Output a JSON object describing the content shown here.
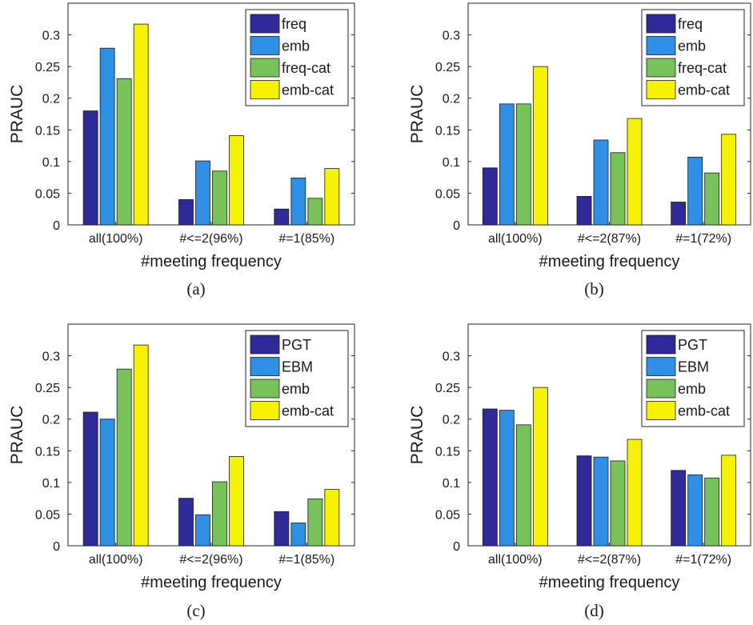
{
  "colors": {
    "series": [
      "#2e2a9a",
      "#2e8fe6",
      "#78c25a",
      "#f7f300"
    ],
    "axis": "#262626",
    "bar_edge": "#1a1a1a"
  },
  "chart_data": [
    {
      "type": "bar",
      "caption": "(a)",
      "xlabel": "#meeting frequency",
      "ylabel": "PRAUC",
      "ylim": [
        0,
        0.35
      ],
      "yticks": [
        "0",
        "0.05",
        "0.1",
        "0.15",
        "0.2",
        "0.25",
        "0.3"
      ],
      "categories": [
        "all(100%)",
        "#<=2(96%)",
        "#=1(85%)"
      ],
      "legend_position": "top-right",
      "series": [
        {
          "name": "freq",
          "values": [
            0.18,
            0.04,
            0.025
          ]
        },
        {
          "name": "emb",
          "values": [
            0.279,
            0.101,
            0.074
          ]
        },
        {
          "name": "freq-cat",
          "values": [
            0.231,
            0.085,
            0.042
          ]
        },
        {
          "name": "emb-cat",
          "values": [
            0.317,
            0.141,
            0.089
          ]
        }
      ]
    },
    {
      "type": "bar",
      "caption": "(b)",
      "xlabel": "#meeting frequency",
      "ylabel": "PRAUC",
      "ylim": [
        0,
        0.35
      ],
      "yticks": [
        "0",
        "0.05",
        "0.1",
        "0.15",
        "0.2",
        "0.25",
        "0.3"
      ],
      "categories": [
        "all(100%)",
        "#<=2(87%)",
        "#=1(72%)"
      ],
      "legend_position": "top-right",
      "series": [
        {
          "name": "freq",
          "values": [
            0.09,
            0.045,
            0.036
          ]
        },
        {
          "name": "emb",
          "values": [
            0.191,
            0.134,
            0.107
          ]
        },
        {
          "name": "freq-cat",
          "values": [
            0.191,
            0.114,
            0.082
          ]
        },
        {
          "name": "emb-cat",
          "values": [
            0.25,
            0.168,
            0.143
          ]
        }
      ]
    },
    {
      "type": "bar",
      "caption": "(c)",
      "xlabel": "#meeting frequency",
      "ylabel": "PRAUC",
      "ylim": [
        0,
        0.35
      ],
      "yticks": [
        "0",
        "0.05",
        "0.1",
        "0.15",
        "0.2",
        "0.25",
        "0.3"
      ],
      "categories": [
        "all(100%)",
        "#<=2(96%)",
        "#=1(85%)"
      ],
      "legend_position": "top-right",
      "series": [
        {
          "name": "PGT",
          "values": [
            0.211,
            0.075,
            0.054
          ]
        },
        {
          "name": "EBM",
          "values": [
            0.2,
            0.049,
            0.036
          ]
        },
        {
          "name": "emb",
          "values": [
            0.279,
            0.101,
            0.074
          ]
        },
        {
          "name": "emb-cat",
          "values": [
            0.317,
            0.141,
            0.089
          ]
        }
      ]
    },
    {
      "type": "bar",
      "caption": "(d)",
      "xlabel": "#meeting frequency",
      "ylabel": "PRAUC",
      "ylim": [
        0,
        0.35
      ],
      "yticks": [
        "0",
        "0.05",
        "0.1",
        "0.15",
        "0.2",
        "0.25",
        "0.3"
      ],
      "categories": [
        "all(100%)",
        "#<=2(87%)",
        "#=1(72%)"
      ],
      "legend_position": "top-right",
      "series": [
        {
          "name": "PGT",
          "values": [
            0.216,
            0.142,
            0.119
          ]
        },
        {
          "name": "EBM",
          "values": [
            0.214,
            0.14,
            0.112
          ]
        },
        {
          "name": "emb",
          "values": [
            0.191,
            0.134,
            0.107
          ]
        },
        {
          "name": "emb-cat",
          "values": [
            0.25,
            0.168,
            0.143
          ]
        }
      ]
    }
  ]
}
